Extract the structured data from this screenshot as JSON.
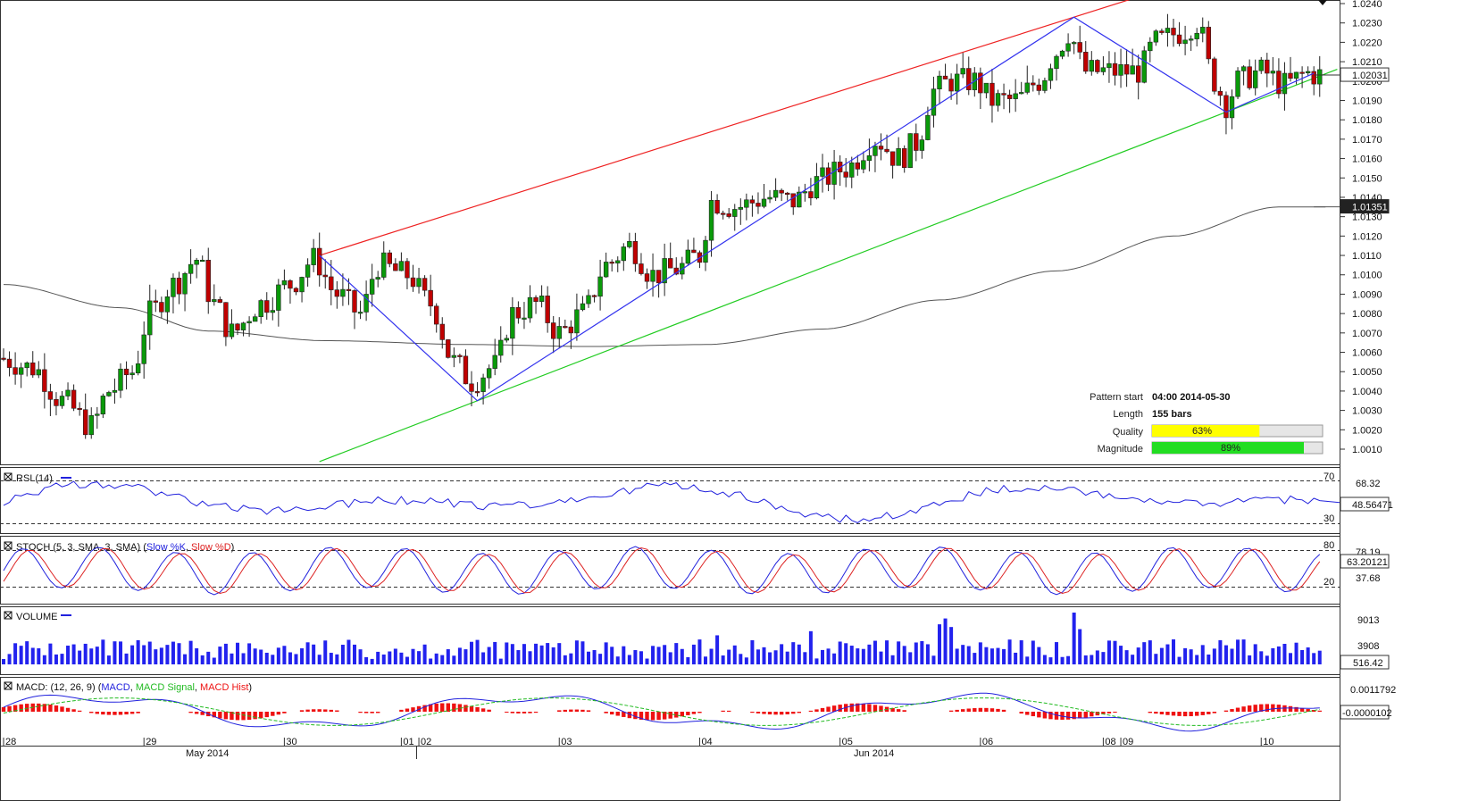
{
  "chart_data": [
    {
      "type": "candlestick",
      "pane": "price",
      "y_ticks": [
        "1.0240",
        "1.0230",
        "1.0220",
        "1.0210",
        "1.0200",
        "1.0190",
        "1.0180",
        "1.0170",
        "1.0160",
        "1.0150",
        "1.0140",
        "1.0130",
        "1.0120",
        "1.0110",
        "1.0100",
        "1.0090",
        "1.0080",
        "1.0070",
        "1.0060",
        "1.0050",
        "1.0040",
        "1.0030",
        "1.0020",
        "1.0010"
      ],
      "ylim": [
        1.0004,
        1.0244
      ],
      "last_price": "1.02031",
      "ma_value": "1.01351",
      "colors": {
        "bull": "#0a9a0a",
        "bear": "#c00000",
        "ma": "#555555",
        "zigzag": "#3333ee",
        "resistance": "#ee2222",
        "support": "#22cc22"
      },
      "pattern_info": {
        "start_label": "Pattern start",
        "start_value": "04:00 2014-05-30",
        "length_label": "Length",
        "length_value": "155 bars",
        "quality_label": "Quality",
        "quality_value": "63%",
        "quality_fraction": 0.63,
        "magnitude_label": "Magnitude",
        "magnitude_value": "89%",
        "magnitude_fraction": 0.89
      },
      "zigzag_points": [
        {
          "bar": 54,
          "price": 1.011
        },
        {
          "bar": 81,
          "price": 1.0035
        },
        {
          "bar": 183,
          "price": 1.0233
        },
        {
          "bar": 209,
          "price": 1.0184
        },
        {
          "bar": 224,
          "price": 1.0204
        }
      ],
      "resistance_line": [
        {
          "bar": 54,
          "price": 1.011
        },
        {
          "bar": 183,
          "price": 1.0233
        }
      ],
      "support_line": [
        {
          "bar": 81,
          "price": 1.0035
        },
        {
          "bar": 209,
          "price": 1.0184
        }
      ]
    },
    {
      "type": "line",
      "pane": "rsi",
      "title": "RSI (14)",
      "levels": [
        "70",
        "30"
      ],
      "right_labels": [
        "68.32",
        "48.56471"
      ],
      "last_value": 48.56,
      "ylim": [
        20,
        80
      ]
    },
    {
      "type": "line",
      "pane": "stoch",
      "title_prefix": "STOCH (5, 3, SMA, 3, SMA) (",
      "series": [
        {
          "name": "Slow %K",
          "color": "#2222dd"
        },
        {
          "name": "Slow %D",
          "color": "#dd2222"
        }
      ],
      "levels": [
        "80",
        "20"
      ],
      "right_labels": [
        "78.19",
        "63.20121",
        "37.68"
      ],
      "ylim": [
        0,
        100
      ]
    },
    {
      "type": "bar",
      "pane": "volume",
      "title": "VOLUME",
      "right_labels": [
        "9013",
        "3908",
        "516.42"
      ],
      "ylim": [
        0,
        12000
      ]
    },
    {
      "type": "line",
      "pane": "macd",
      "title_prefix": "MACD: (12, 26, 9) (",
      "series": [
        {
          "name": "MACD",
          "color": "#2222dd"
        },
        {
          "name": "MACD Signal",
          "color": "#22bb22"
        },
        {
          "name": "MACD Hist",
          "color": "#ee1111"
        }
      ],
      "right_labels": [
        "0.0011792",
        "-0.0000102"
      ]
    }
  ],
  "x_axis": {
    "day_labels": [
      {
        "label": "28",
        "bar": 0
      },
      {
        "label": "29",
        "bar": 24
      },
      {
        "label": "30",
        "bar": 48
      },
      {
        "label": "01",
        "bar": 68
      },
      {
        "label": "02",
        "bar": 71
      },
      {
        "label": "03",
        "bar": 95
      },
      {
        "label": "04",
        "bar": 119
      },
      {
        "label": "05",
        "bar": 143
      },
      {
        "label": "06",
        "bar": 167
      },
      {
        "label": "08",
        "bar": 188
      },
      {
        "label": "09",
        "bar": 191
      },
      {
        "label": "10",
        "bar": 215
      }
    ],
    "month_labels": [
      "May 2014",
      "Jun 2014"
    ]
  }
}
